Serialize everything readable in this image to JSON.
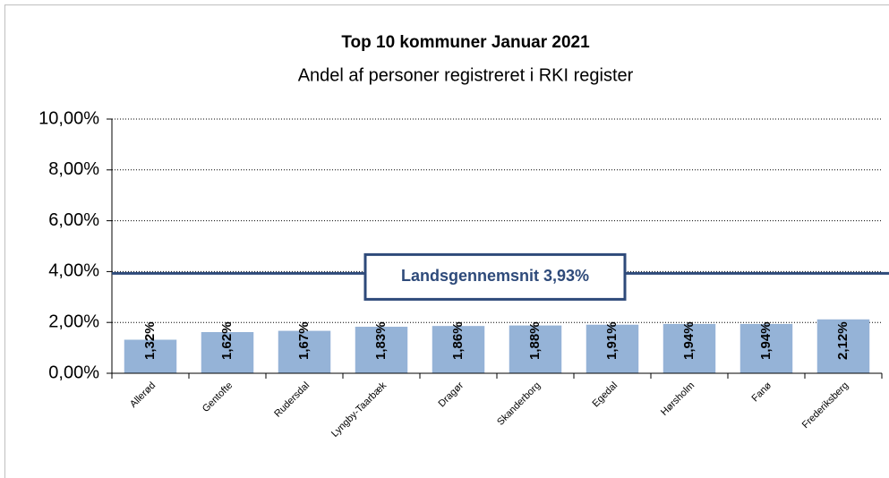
{
  "chart_data": {
    "type": "bar",
    "title": "Top 10 kommuner Januar 2021",
    "subtitle": "Andel af personer registreret i RKI register",
    "categories": [
      "Allerød",
      "Gentofte",
      "Rudersdal",
      "Lyngby-Taarbæk",
      "Dragør",
      "Skanderborg",
      "Egedal",
      "Hørsholm",
      "Fanø",
      "Frederiksberg"
    ],
    "values": [
      1.32,
      1.62,
      1.67,
      1.83,
      1.86,
      1.88,
      1.91,
      1.94,
      1.94,
      2.12
    ],
    "value_labels": [
      "1,32%",
      "1,62%",
      "1,67%",
      "1,83%",
      "1,86%",
      "1,88%",
      "1,91%",
      "1,94%",
      "1,94%",
      "2,12%"
    ],
    "color": "#95b3d7",
    "ylim": [
      0,
      10
    ],
    "yticks": [
      {
        "value": 0,
        "label": "0,00%"
      },
      {
        "value": 2,
        "label": "2,00%"
      },
      {
        "value": 4,
        "label": "4,00%"
      },
      {
        "value": 6,
        "label": "6,00%"
      },
      {
        "value": 8,
        "label": "8,00%"
      },
      {
        "value": 10,
        "label": "10,00%"
      }
    ],
    "grid": true,
    "reference_line": {
      "value": 3.93,
      "label": "Landsgennemsnit 3,93%",
      "color": "#2e4a7a"
    }
  }
}
